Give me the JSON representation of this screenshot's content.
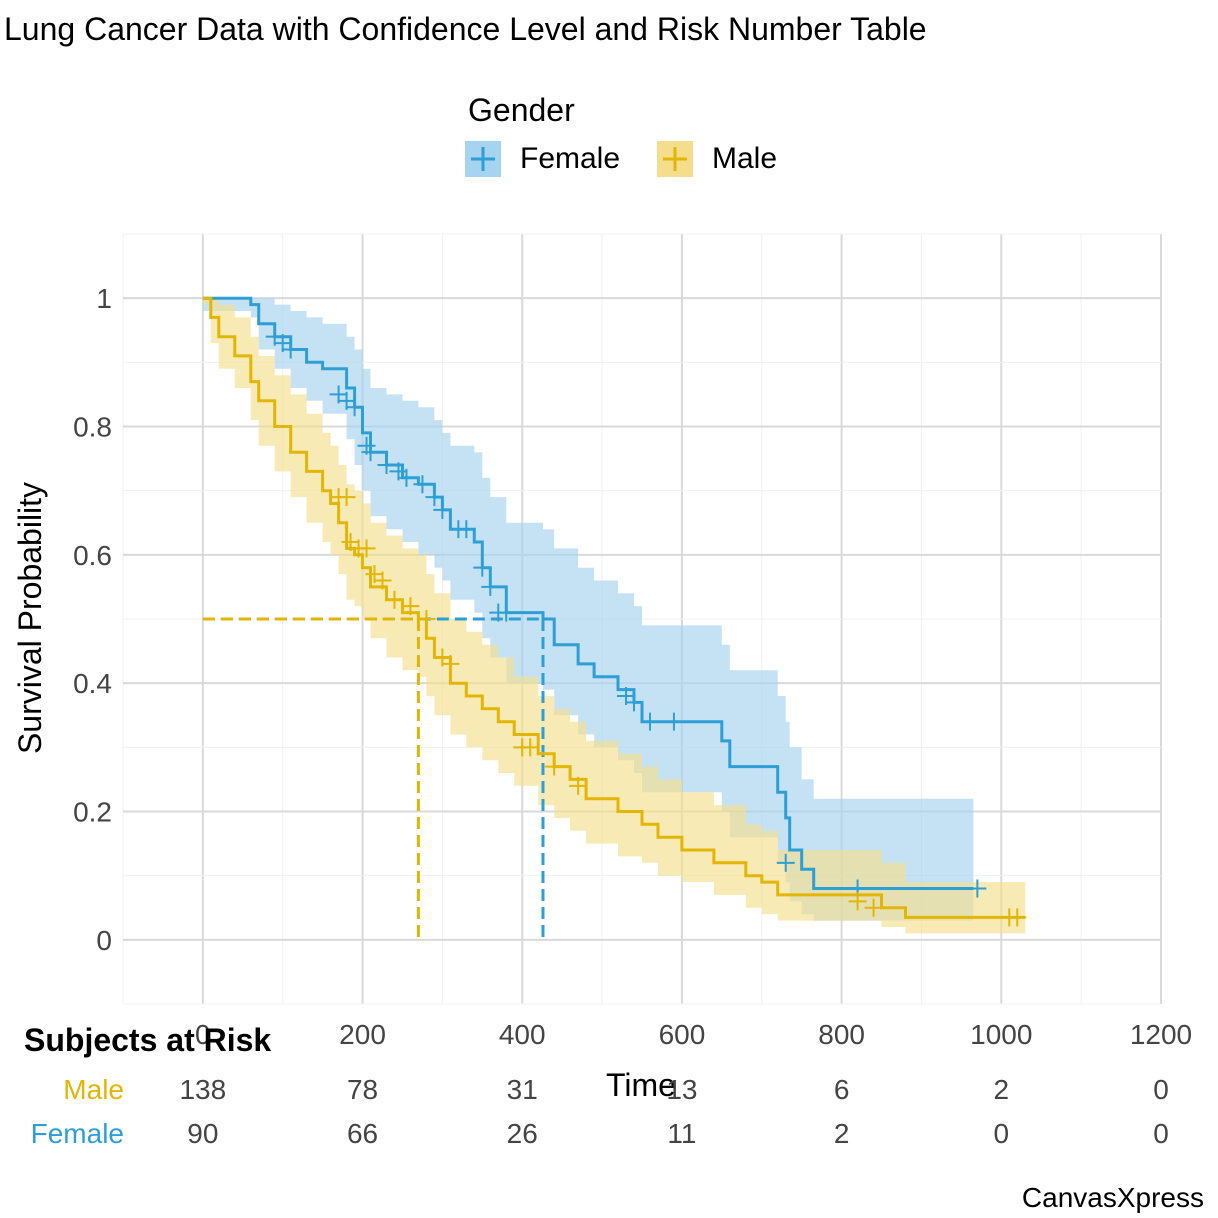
{
  "chart_data": {
    "type": "line",
    "subtype": "kaplan-meier",
    "title": "Lung Cancer Data with Confidence Level and Risk Number Table",
    "xlabel": "Time",
    "ylabel": "Survival Probability",
    "xlim": [
      -100,
      1200
    ],
    "ylim": [
      -0.1,
      1.1
    ],
    "xticks": [
      0,
      200,
      400,
      600,
      800,
      1000,
      1200
    ],
    "yticks": [
      0,
      0.2,
      0.4,
      0.6,
      0.8,
      1
    ],
    "ytick_labels": [
      "0",
      "0.2",
      "0.4",
      "0.6",
      "0.8",
      "1"
    ],
    "legend": {
      "title": "Gender",
      "position": "top"
    },
    "median_survival": 0.5,
    "series": [
      {
        "name": "Female",
        "color": "#2E9ED6",
        "band_color": "#A6D3EF",
        "median_time": 426,
        "survival": [
          [
            0,
            1
          ],
          [
            60,
            0.99
          ],
          [
            70,
            0.96
          ],
          [
            90,
            0.94
          ],
          [
            110,
            0.92
          ],
          [
            130,
            0.9
          ],
          [
            150,
            0.89
          ],
          [
            180,
            0.86
          ],
          [
            190,
            0.83
          ],
          [
            200,
            0.79
          ],
          [
            210,
            0.76
          ],
          [
            230,
            0.74
          ],
          [
            250,
            0.72
          ],
          [
            270,
            0.71
          ],
          [
            290,
            0.69
          ],
          [
            300,
            0.67
          ],
          [
            310,
            0.64
          ],
          [
            340,
            0.62
          ],
          [
            350,
            0.58
          ],
          [
            360,
            0.55
          ],
          [
            380,
            0.51
          ],
          [
            426,
            0.5
          ],
          [
            440,
            0.46
          ],
          [
            470,
            0.43
          ],
          [
            490,
            0.41
          ],
          [
            520,
            0.39
          ],
          [
            540,
            0.37
          ],
          [
            550,
            0.34
          ],
          [
            650,
            0.31
          ],
          [
            660,
            0.27
          ],
          [
            720,
            0.23
          ],
          [
            730,
            0.19
          ],
          [
            735,
            0.14
          ],
          [
            750,
            0.11
          ],
          [
            765,
            0.08
          ],
          [
            965,
            0.08
          ]
        ],
        "lower": [
          [
            0,
            0.98
          ],
          [
            60,
            0.97
          ],
          [
            70,
            0.92
          ],
          [
            90,
            0.89
          ],
          [
            110,
            0.86
          ],
          [
            130,
            0.84
          ],
          [
            150,
            0.82
          ],
          [
            180,
            0.78
          ],
          [
            190,
            0.74
          ],
          [
            200,
            0.7
          ],
          [
            210,
            0.66
          ],
          [
            230,
            0.64
          ],
          [
            250,
            0.62
          ],
          [
            270,
            0.6
          ],
          [
            290,
            0.58
          ],
          [
            300,
            0.56
          ],
          [
            310,
            0.53
          ],
          [
            340,
            0.51
          ],
          [
            350,
            0.47
          ],
          [
            360,
            0.44
          ],
          [
            380,
            0.4
          ],
          [
            426,
            0.39
          ],
          [
            440,
            0.35
          ],
          [
            470,
            0.32
          ],
          [
            490,
            0.3
          ],
          [
            520,
            0.28
          ],
          [
            540,
            0.26
          ],
          [
            550,
            0.23
          ],
          [
            650,
            0.2
          ],
          [
            660,
            0.16
          ],
          [
            720,
            0.12
          ],
          [
            730,
            0.09
          ],
          [
            735,
            0.06
          ],
          [
            750,
            0.04
          ],
          [
            765,
            0.03
          ],
          [
            965,
            0.03
          ]
        ],
        "upper": [
          [
            0,
            1
          ],
          [
            60,
            1
          ],
          [
            70,
            1
          ],
          [
            90,
            0.99
          ],
          [
            110,
            0.98
          ],
          [
            130,
            0.97
          ],
          [
            150,
            0.96
          ],
          [
            180,
            0.94
          ],
          [
            190,
            0.92
          ],
          [
            200,
            0.89
          ],
          [
            210,
            0.86
          ],
          [
            230,
            0.85
          ],
          [
            250,
            0.84
          ],
          [
            270,
            0.83
          ],
          [
            290,
            0.81
          ],
          [
            300,
            0.79
          ],
          [
            310,
            0.77
          ],
          [
            340,
            0.76
          ],
          [
            350,
            0.72
          ],
          [
            360,
            0.69
          ],
          [
            380,
            0.65
          ],
          [
            426,
            0.64
          ],
          [
            440,
            0.61
          ],
          [
            470,
            0.58
          ],
          [
            490,
            0.56
          ],
          [
            520,
            0.54
          ],
          [
            540,
            0.52
          ],
          [
            550,
            0.49
          ],
          [
            650,
            0.46
          ],
          [
            660,
            0.42
          ],
          [
            720,
            0.38
          ],
          [
            730,
            0.34
          ],
          [
            735,
            0.3
          ],
          [
            750,
            0.25
          ],
          [
            765,
            0.22
          ],
          [
            965,
            0.22
          ]
        ],
        "censored": [
          [
            90,
            0.94
          ],
          [
            100,
            0.93
          ],
          [
            110,
            0.92
          ],
          [
            170,
            0.85
          ],
          [
            180,
            0.84
          ],
          [
            190,
            0.83
          ],
          [
            205,
            0.77
          ],
          [
            210,
            0.76
          ],
          [
            230,
            0.74
          ],
          [
            245,
            0.73
          ],
          [
            255,
            0.72
          ],
          [
            275,
            0.71
          ],
          [
            290,
            0.69
          ],
          [
            300,
            0.67
          ],
          [
            320,
            0.64
          ],
          [
            330,
            0.64
          ],
          [
            350,
            0.58
          ],
          [
            360,
            0.55
          ],
          [
            370,
            0.51
          ],
          [
            380,
            0.51
          ],
          [
            530,
            0.38
          ],
          [
            540,
            0.37
          ],
          [
            560,
            0.34
          ],
          [
            590,
            0.34
          ],
          [
            730,
            0.12
          ],
          [
            820,
            0.08
          ],
          [
            970,
            0.08
          ]
        ]
      },
      {
        "name": "Male",
        "color": "#E3B505",
        "band_color": "#F4DE8C",
        "median_time": 270,
        "survival": [
          [
            0,
            1
          ],
          [
            10,
            0.97
          ],
          [
            20,
            0.94
          ],
          [
            40,
            0.91
          ],
          [
            60,
            0.87
          ],
          [
            70,
            0.84
          ],
          [
            90,
            0.8
          ],
          [
            110,
            0.76
          ],
          [
            130,
            0.73
          ],
          [
            150,
            0.7
          ],
          [
            160,
            0.68
          ],
          [
            170,
            0.65
          ],
          [
            180,
            0.61
          ],
          [
            190,
            0.6
          ],
          [
            200,
            0.58
          ],
          [
            210,
            0.55
          ],
          [
            230,
            0.53
          ],
          [
            250,
            0.51
          ],
          [
            270,
            0.5
          ],
          [
            280,
            0.47
          ],
          [
            290,
            0.44
          ],
          [
            310,
            0.4
          ],
          [
            330,
            0.38
          ],
          [
            350,
            0.36
          ],
          [
            370,
            0.34
          ],
          [
            390,
            0.32
          ],
          [
            420,
            0.29
          ],
          [
            440,
            0.27
          ],
          [
            460,
            0.25
          ],
          [
            480,
            0.22
          ],
          [
            520,
            0.2
          ],
          [
            550,
            0.18
          ],
          [
            570,
            0.16
          ],
          [
            600,
            0.14
          ],
          [
            640,
            0.12
          ],
          [
            680,
            0.1
          ],
          [
            700,
            0.09
          ],
          [
            720,
            0.07
          ],
          [
            800,
            0.07
          ],
          [
            850,
            0.05
          ],
          [
            880,
            0.035
          ],
          [
            1030,
            0.035
          ]
        ],
        "lower": [
          [
            0,
            0.99
          ],
          [
            10,
            0.93
          ],
          [
            20,
            0.89
          ],
          [
            40,
            0.86
          ],
          [
            60,
            0.81
          ],
          [
            70,
            0.77
          ],
          [
            90,
            0.73
          ],
          [
            110,
            0.69
          ],
          [
            130,
            0.65
          ],
          [
            150,
            0.62
          ],
          [
            160,
            0.6
          ],
          [
            170,
            0.57
          ],
          [
            180,
            0.53
          ],
          [
            190,
            0.52
          ],
          [
            200,
            0.5
          ],
          [
            210,
            0.47
          ],
          [
            230,
            0.44
          ],
          [
            250,
            0.42
          ],
          [
            270,
            0.41
          ],
          [
            280,
            0.38
          ],
          [
            290,
            0.35
          ],
          [
            310,
            0.32
          ],
          [
            330,
            0.3
          ],
          [
            350,
            0.28
          ],
          [
            370,
            0.26
          ],
          [
            390,
            0.24
          ],
          [
            420,
            0.21
          ],
          [
            440,
            0.19
          ],
          [
            460,
            0.17
          ],
          [
            480,
            0.15
          ],
          [
            520,
            0.13
          ],
          [
            550,
            0.12
          ],
          [
            570,
            0.1
          ],
          [
            600,
            0.09
          ],
          [
            640,
            0.07
          ],
          [
            680,
            0.05
          ],
          [
            700,
            0.04
          ],
          [
            720,
            0.03
          ],
          [
            800,
            0.03
          ],
          [
            850,
            0.02
          ],
          [
            880,
            0.01
          ],
          [
            1030,
            0.01
          ]
        ],
        "upper": [
          [
            0,
            1
          ],
          [
            10,
            1
          ],
          [
            20,
            0.99
          ],
          [
            40,
            0.97
          ],
          [
            60,
            0.94
          ],
          [
            70,
            0.91
          ],
          [
            90,
            0.88
          ],
          [
            110,
            0.85
          ],
          [
            130,
            0.82
          ],
          [
            150,
            0.79
          ],
          [
            160,
            0.77
          ],
          [
            170,
            0.74
          ],
          [
            180,
            0.71
          ],
          [
            190,
            0.7
          ],
          [
            200,
            0.68
          ],
          [
            210,
            0.65
          ],
          [
            230,
            0.63
          ],
          [
            250,
            0.61
          ],
          [
            270,
            0.6
          ],
          [
            280,
            0.57
          ],
          [
            290,
            0.54
          ],
          [
            310,
            0.5
          ],
          [
            330,
            0.48
          ],
          [
            350,
            0.46
          ],
          [
            370,
            0.44
          ],
          [
            390,
            0.41
          ],
          [
            420,
            0.38
          ],
          [
            440,
            0.36
          ],
          [
            460,
            0.34
          ],
          [
            480,
            0.31
          ],
          [
            520,
            0.29
          ],
          [
            550,
            0.27
          ],
          [
            570,
            0.25
          ],
          [
            600,
            0.23
          ],
          [
            640,
            0.21
          ],
          [
            680,
            0.18
          ],
          [
            700,
            0.17
          ],
          [
            720,
            0.14
          ],
          [
            800,
            0.14
          ],
          [
            850,
            0.12
          ],
          [
            880,
            0.09
          ],
          [
            1030,
            0.09
          ]
        ],
        "censored": [
          [
            170,
            0.69
          ],
          [
            180,
            0.69
          ],
          [
            185,
            0.62
          ],
          [
            195,
            0.61
          ],
          [
            205,
            0.61
          ],
          [
            215,
            0.57
          ],
          [
            225,
            0.56
          ],
          [
            240,
            0.53
          ],
          [
            260,
            0.52
          ],
          [
            280,
            0.5
          ],
          [
            300,
            0.44
          ],
          [
            310,
            0.43
          ],
          [
            400,
            0.3
          ],
          [
            410,
            0.3
          ],
          [
            440,
            0.27
          ],
          [
            470,
            0.24
          ],
          [
            820,
            0.06
          ],
          [
            840,
            0.05
          ],
          [
            1010,
            0.035
          ],
          [
            1020,
            0.035
          ]
        ]
      }
    ],
    "risk_table": {
      "title": "Subjects at Risk",
      "times": [
        0,
        200,
        400,
        600,
        800,
        1000,
        1200
      ],
      "rows": [
        {
          "name": "Male",
          "color": "#E3B505",
          "values": [
            "138",
            "78",
            "31",
            "13",
            "6",
            "2",
            "0"
          ]
        },
        {
          "name": "Female",
          "color": "#2E9ED6",
          "values": [
            "90",
            "66",
            "26",
            "11",
            "2",
            "0",
            "0"
          ]
        }
      ]
    }
  },
  "branding": "CanvasXpress"
}
